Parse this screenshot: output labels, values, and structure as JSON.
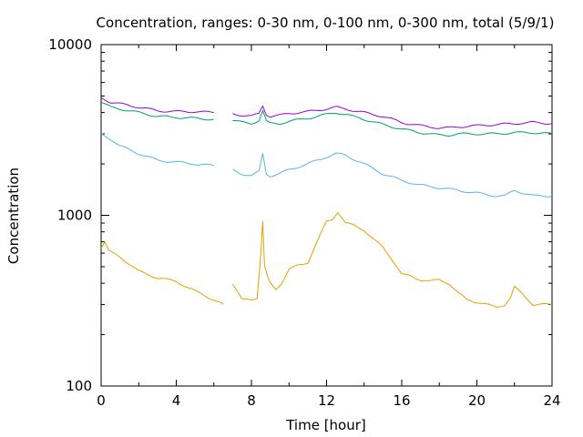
{
  "chart_data": {
    "type": "line",
    "title": "Concentration, ranges: 0-30 nm, 0-100 nm, 0-300 nm, total (5/9/1)",
    "xlabel": "Time [hour]",
    "ylabel": "Concentration",
    "xlim": [
      0,
      24
    ],
    "ylim": [
      100,
      10000
    ],
    "yscale": "log",
    "xticks": [
      "0",
      "4",
      "8",
      "12",
      "16",
      "20",
      "24"
    ],
    "yticks": [
      "100",
      "1000",
      "10000"
    ],
    "grid": false,
    "colors": {
      "total": "#9400d3",
      "0-300": "#009e73",
      "0-100": "#56b4e9",
      "0-30": "#e69f00"
    },
    "series": [
      {
        "key": "total",
        "color": "#9400d3",
        "x": [
          0,
          0.5,
          1,
          2,
          3,
          4,
          5,
          6,
          6.5,
          7,
          7.5,
          8,
          8.4,
          8.6,
          8.8,
          9,
          9.5,
          10,
          11,
          12,
          12.5,
          13,
          14,
          15,
          16,
          17,
          17.5,
          18,
          18.5,
          19,
          20,
          21,
          22,
          23,
          24
        ],
        "y": [
          4900,
          4600,
          4500,
          4300,
          4100,
          4050,
          4050,
          4000,
          null,
          3950,
          3850,
          3800,
          3950,
          4400,
          3900,
          3800,
          3850,
          3950,
          4050,
          4200,
          4300,
          4200,
          4000,
          3800,
          3500,
          3350,
          3300,
          3250,
          3250,
          3300,
          3350,
          3400,
          3450,
          3500,
          3450
        ]
      },
      {
        "key": "0-300",
        "color": "#009e73",
        "x": [
          0,
          0.5,
          1,
          2,
          3,
          4,
          5,
          6,
          6.5,
          7,
          7.5,
          8,
          8.4,
          8.6,
          8.8,
          9,
          9.5,
          10,
          11,
          12,
          12.5,
          13,
          14,
          15,
          16,
          17,
          17.5,
          18,
          18.5,
          19,
          20,
          21,
          22,
          23,
          24
        ],
        "y": [
          4600,
          4300,
          4200,
          4000,
          3800,
          3750,
          3700,
          3650,
          null,
          3600,
          3500,
          3450,
          3600,
          4100,
          3550,
          3450,
          3450,
          3550,
          3700,
          3900,
          4000,
          3900,
          3650,
          3400,
          3200,
          3050,
          3000,
          2950,
          2950,
          3000,
          3000,
          3000,
          3050,
          3050,
          3000
        ]
      },
      {
        "key": "0-100",
        "color": "#56b4e9",
        "x": [
          0,
          0.5,
          1,
          2,
          3,
          4,
          5,
          6,
          6.5,
          7,
          7.5,
          8,
          8.4,
          8.6,
          8.8,
          9,
          9.5,
          10,
          11,
          12,
          12.5,
          13,
          14,
          15,
          16,
          17,
          18,
          19,
          20,
          21,
          21.5,
          22,
          23,
          24
        ],
        "y": [
          3000,
          2800,
          2550,
          2300,
          2100,
          2050,
          2000,
          1950,
          null,
          1850,
          1750,
          1700,
          1800,
          2300,
          1750,
          1700,
          1750,
          1850,
          2000,
          2200,
          2300,
          2250,
          2000,
          1750,
          1600,
          1500,
          1450,
          1400,
          1350,
          1300,
          1300,
          1400,
          1300,
          1300
        ]
      },
      {
        "key": "0-30",
        "color": "#e69f00",
        "x": [
          0,
          0.2,
          0.4,
          0.6,
          1,
          1.5,
          2,
          3,
          4,
          5,
          6,
          6.5,
          6.7,
          7,
          7.5,
          8,
          8.3,
          8.5,
          8.6,
          8.7,
          8.9,
          9,
          9.3,
          9.6,
          10,
          10.5,
          11,
          11.5,
          12,
          12.3,
          12.6,
          13,
          13.5,
          14,
          14.5,
          15,
          15.5,
          16,
          16.5,
          17,
          17.5,
          18,
          18.5,
          19,
          19.5,
          20,
          20.5,
          21,
          21.5,
          21.8,
          22,
          22.5,
          23,
          23.5,
          24
        ],
        "y": [
          650,
          700,
          620,
          600,
          570,
          520,
          470,
          430,
          410,
          360,
          320,
          300,
          null,
          400,
          320,
          320,
          330,
          600,
          920,
          500,
          420,
          400,
          370,
          400,
          480,
          510,
          530,
          700,
          920,
          950,
          1050,
          900,
          870,
          820,
          720,
          650,
          550,
          450,
          440,
          420,
          410,
          420,
          400,
          350,
          320,
          310,
          300,
          290,
          300,
          330,
          380,
          340,
          300,
          300,
          300
        ]
      }
    ]
  }
}
